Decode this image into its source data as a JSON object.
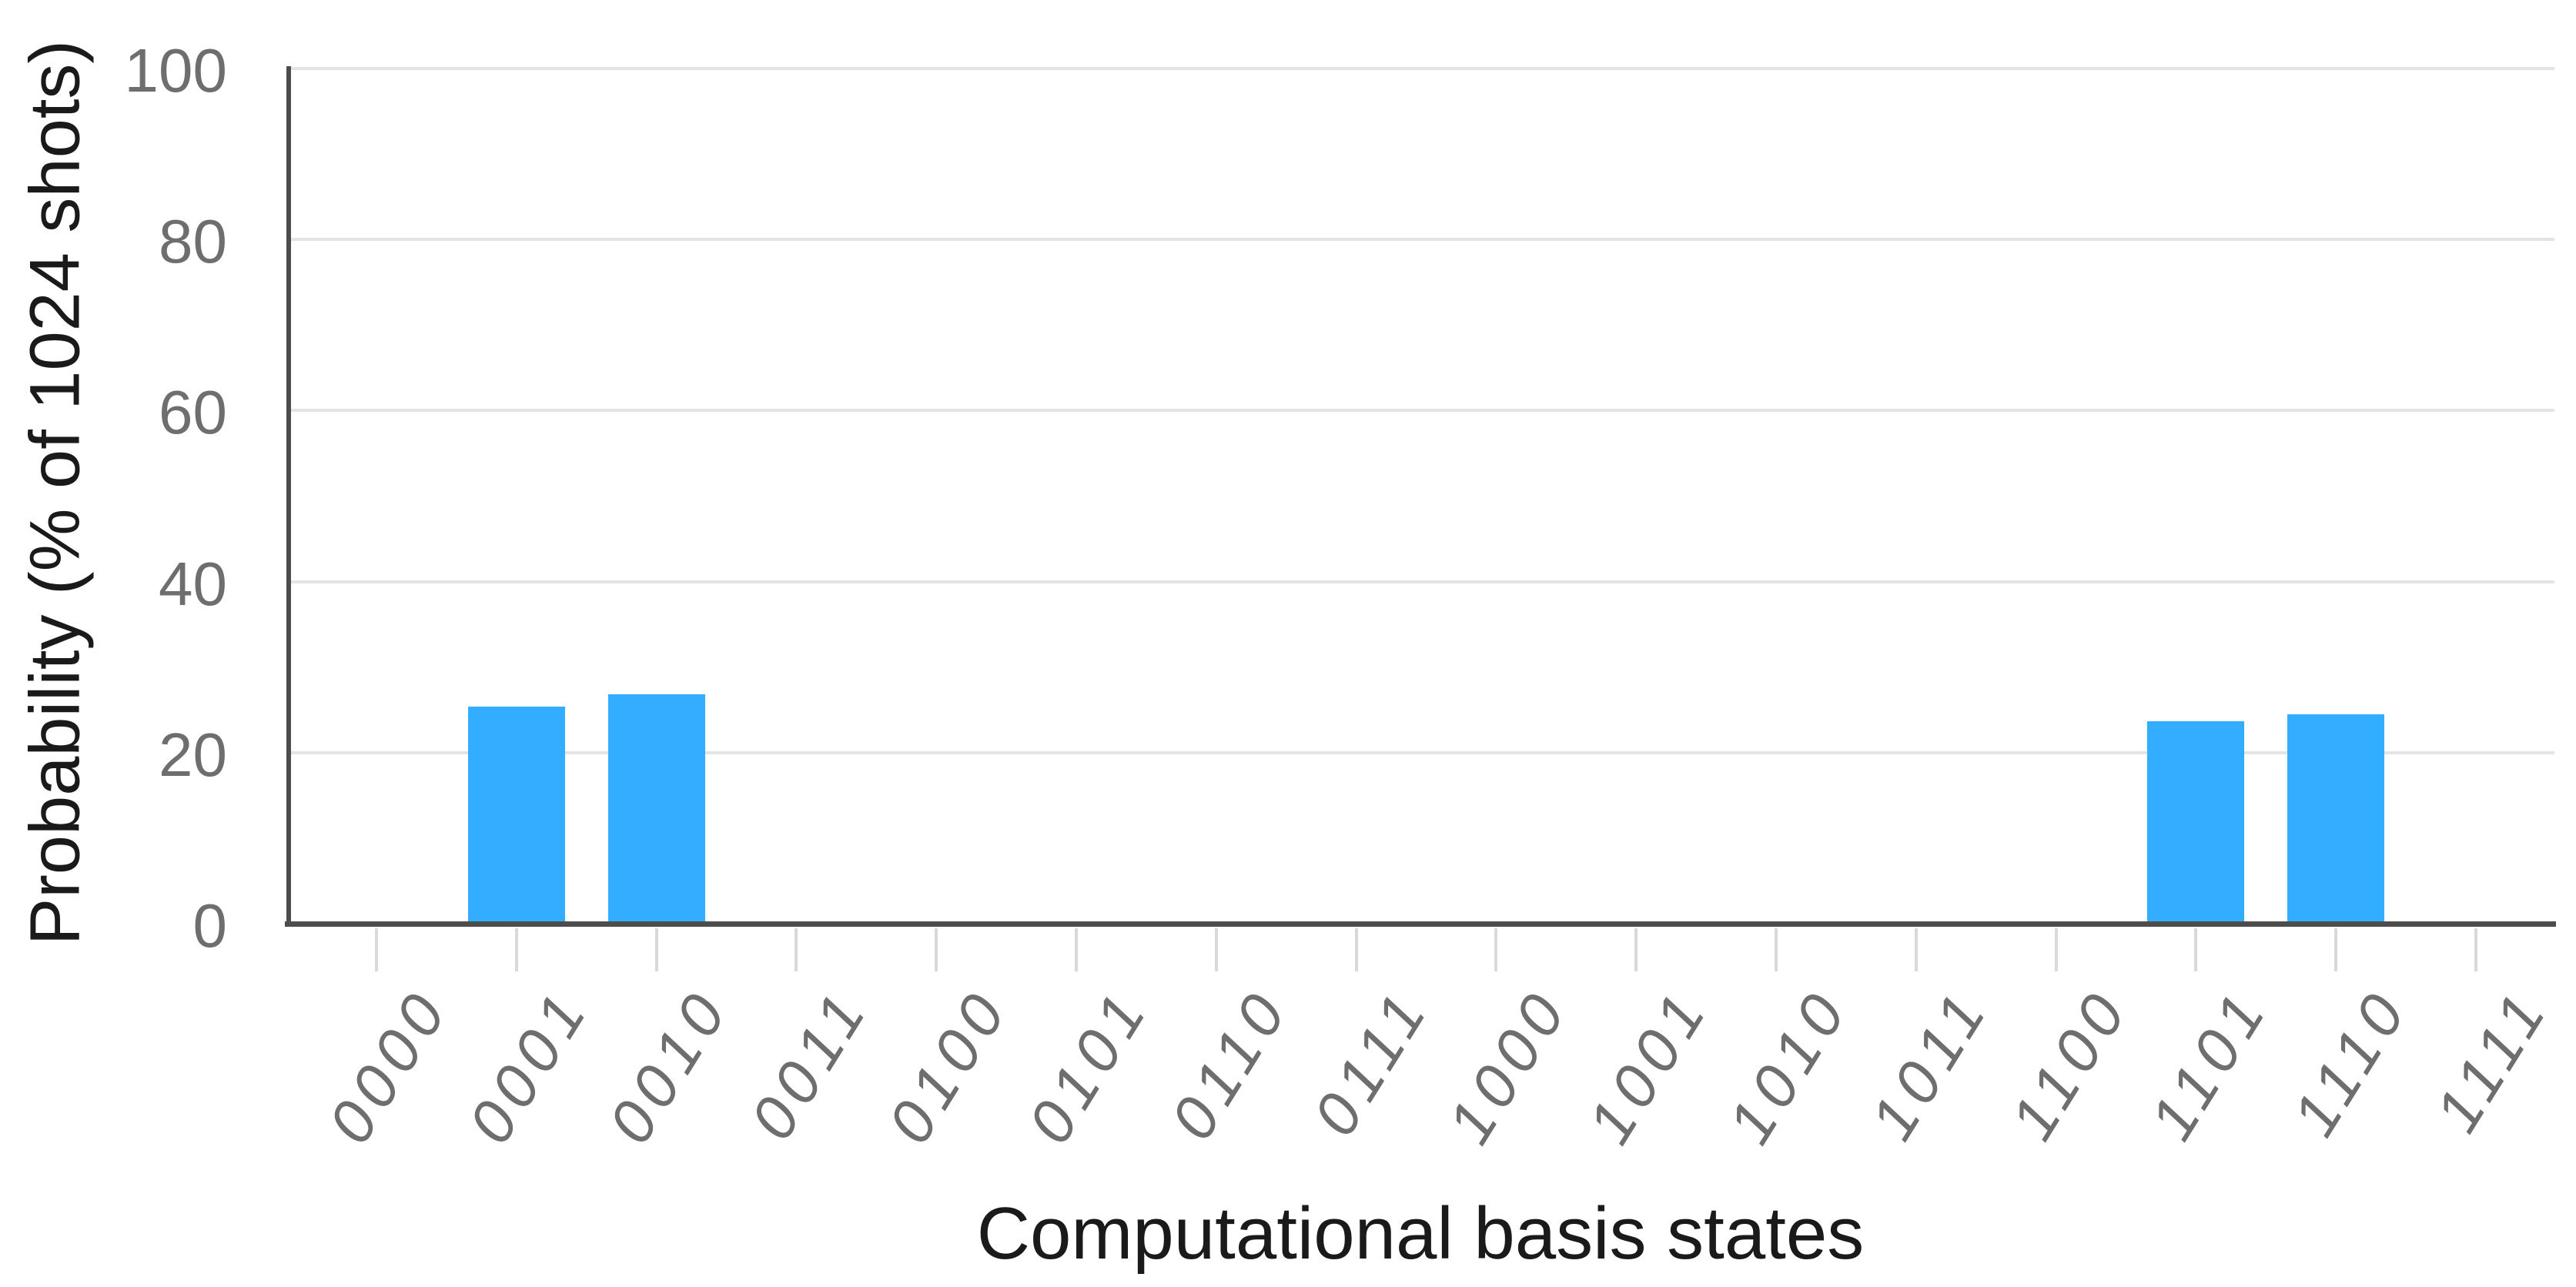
{
  "chart_data": {
    "type": "bar",
    "title": "",
    "xlabel": "Computational basis states",
    "ylabel": "Probability (% of 1024 shots)",
    "shots": 1024,
    "categories": [
      "0000",
      "0001",
      "0010",
      "0011",
      "0100",
      "0101",
      "0110",
      "0111",
      "1000",
      "1001",
      "1010",
      "1011",
      "1100",
      "1101",
      "1110",
      "1111"
    ],
    "values": [
      0,
      25.3,
      26.7,
      0,
      0,
      0,
      0,
      0,
      0,
      0,
      0,
      0,
      0,
      23.6,
      24.4,
      0
    ],
    "ylim": [
      0,
      100
    ],
    "yticks": [
      0,
      20,
      40,
      60,
      80,
      100
    ],
    "grid": true,
    "legend_position": "none"
  },
  "colors": {
    "bar": "#33adff",
    "gridline": "#e4e4e4",
    "axis_line": "#4d4d4d",
    "tick_mark": "#d9d9d9",
    "tick_label": "#6e6e6e",
    "axis_title": "#1a1a1a",
    "background": "#ffffff"
  }
}
